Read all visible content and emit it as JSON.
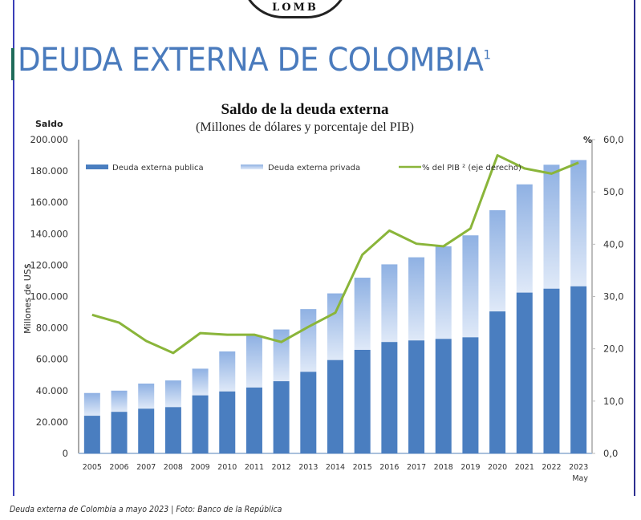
{
  "slide": {
    "seal_text": "LOMB",
    "title": "DEUDA EXTERNA DE COLOMBIA",
    "title_superscript": "1"
  },
  "caption": "Deuda externa de Colombia a mayo 2023 | Foto: Banco de la República",
  "colors": {
    "public": "#4a7ec0",
    "private_top": "#8fb1e3",
    "private_bottom": "#dfe9f8",
    "line": "#8ab53a",
    "title": "#4a7bbd"
  },
  "chart_data": {
    "type": "bar",
    "stacked": true,
    "title": "Saldo de la deuda externa",
    "subtitle": "(Millones  de dólares y porcentaje del PIB)",
    "ylabel": "Millones de US$",
    "ylabel_top": "Saldo",
    "y2label": "%",
    "ylim": [
      0,
      200000
    ],
    "y2lim": [
      0,
      60
    ],
    "yticks": [
      "0",
      "20.000",
      "40.000",
      "60.000",
      "80.000",
      "100.000",
      "120.000",
      "140.000",
      "160.000",
      "180.000",
      "200.000"
    ],
    "y2ticks": [
      "0,0",
      "10,0",
      "20,0",
      "30,0",
      "40,0",
      "50,0",
      "60,0"
    ],
    "categories": [
      "2005",
      "2006",
      "2007",
      "2008",
      "2009",
      "2010",
      "2011",
      "2012",
      "2013",
      "2014",
      "2015",
      "2016",
      "2017",
      "2018",
      "2019",
      "2020",
      "2021",
      "2022",
      "2023"
    ],
    "category_sublabels": {
      "2023": "May"
    },
    "legend_position": "top",
    "series": [
      {
        "name": "Deuda externa publica",
        "type": "bar",
        "axis": "left",
        "values": [
          24000,
          26500,
          28500,
          29500,
          37000,
          39500,
          42000,
          46000,
          52000,
          59500,
          66000,
          71000,
          72000,
          73000,
          74000,
          90500,
          102500,
          105000,
          106500
        ]
      },
      {
        "name": "Deuda externa privada",
        "type": "bar",
        "axis": "left",
        "values": [
          14500,
          13500,
          16000,
          17000,
          17000,
          25500,
          33000,
          33000,
          40000,
          42500,
          46000,
          49500,
          53000,
          59000,
          65000,
          64500,
          69000,
          79000,
          80500
        ]
      },
      {
        "name": "% del PIB ² (eje derecho)",
        "type": "line",
        "axis": "right",
        "values": [
          26.5,
          25.0,
          21.5,
          19.2,
          23.0,
          22.7,
          22.7,
          21.3,
          24.2,
          26.9,
          38.0,
          42.6,
          40.1,
          39.6,
          43.0,
          57.0,
          54.5,
          53.5,
          55.6
        ]
      }
    ]
  }
}
